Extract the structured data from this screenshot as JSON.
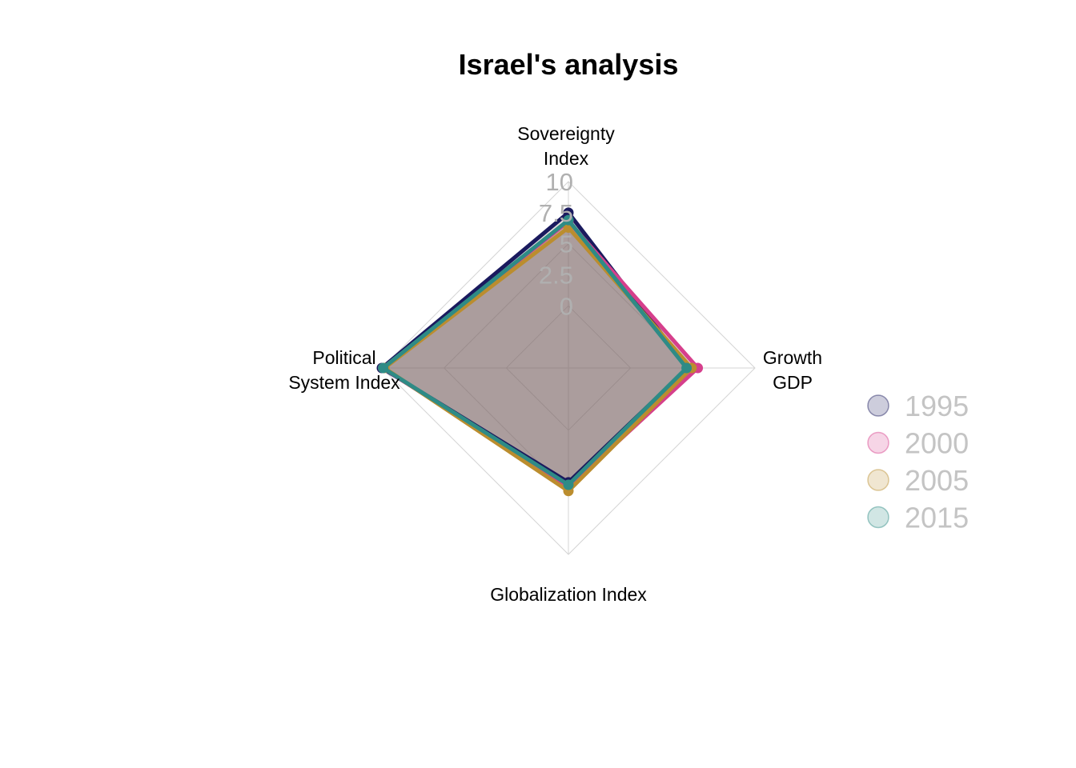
{
  "chart_data": {
    "type": "radar",
    "title": "Israel's analysis",
    "axes": [
      {
        "label_lines": [
          "Sovereignty",
          "Index"
        ]
      },
      {
        "label_lines": [
          "Growth",
          "GDP"
        ]
      },
      {
        "label_lines": [
          "Globalization Index"
        ]
      },
      {
        "label_lines": [
          "Political",
          "System Index"
        ]
      }
    ],
    "radial_ticks": [
      "0",
      "2.5",
      "5",
      "7.5",
      "10"
    ],
    "rlim": [
      -5,
      10
    ],
    "grid": true,
    "legend_position": "right",
    "fill_color": "#7a6565",
    "fill_opacity": 0.6,
    "series": [
      {
        "name": "1995",
        "color": "#1a1a5e",
        "values": [
          7.5,
          4.6,
          4.2,
          10.0
        ]
      },
      {
        "name": "2000",
        "color": "#d63f8c",
        "values": [
          6.8,
          5.4,
          4.6,
          9.9
        ]
      },
      {
        "name": "2005",
        "color": "#bb8d2e",
        "values": [
          6.3,
          4.9,
          4.9,
          9.8
        ]
      },
      {
        "name": "2015",
        "color": "#2e8b86",
        "values": [
          6.9,
          4.5,
          4.4,
          9.9
        ]
      }
    ]
  }
}
